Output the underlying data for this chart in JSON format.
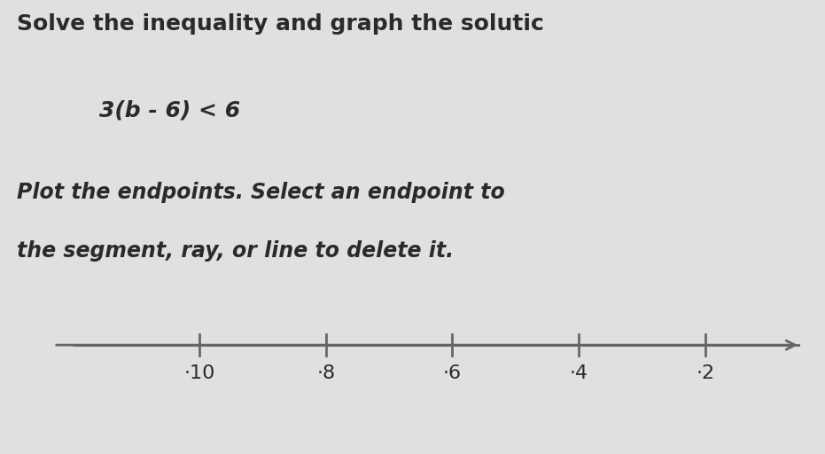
{
  "title_line1": "Solve the inequality and graph the solutic",
  "equation": "3(b - 6) < 6",
  "instruction_line1": "Plot the endpoints. Select an endpoint to",
  "instruction_line2": "the segment, ray, or line to delete it.",
  "background_color": "#e0e0e0",
  "text_color": "#2a2a2a",
  "axis_color": "#666666",
  "tick_labels": [
    "·10",
    "·8",
    "·6",
    "·4",
    "·2"
  ],
  "tick_values": [
    -10,
    -8,
    -6,
    -4,
    -2
  ],
  "xlim": [
    -12.5,
    -0.5
  ],
  "title_fontsize": 18,
  "equation_fontsize": 18,
  "instruction_fontsize": 17,
  "tick_fontsize": 16
}
